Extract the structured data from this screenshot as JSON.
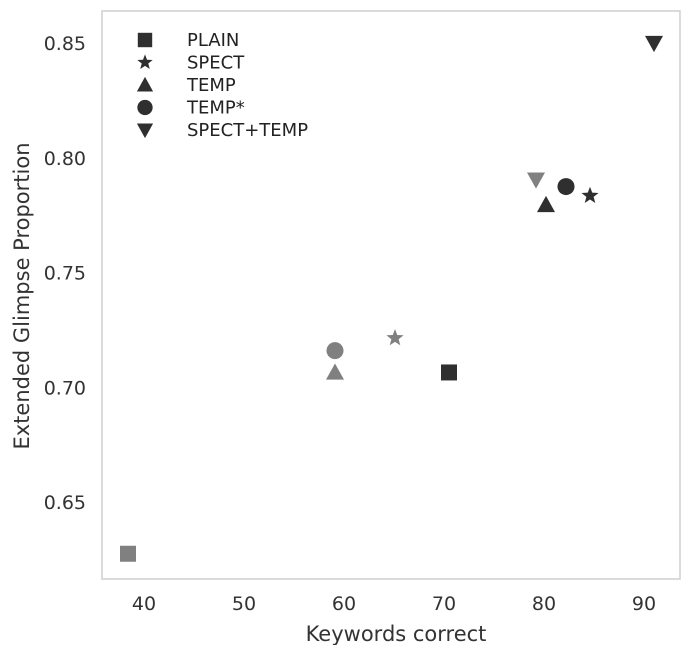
{
  "chart_data": {
    "type": "scatter",
    "title": "",
    "xlabel": "Keywords correct",
    "ylabel": "Extended Glimpse Proportion",
    "xlim": [
      35.8,
      93.6
    ],
    "ylim": [
      0.6165,
      0.864
    ],
    "xticks": [
      40,
      50,
      60,
      70,
      80,
      90
    ],
    "xtick_labels": [
      "40",
      "50",
      "60",
      "70",
      "80",
      "90"
    ],
    "yticks": [
      0.65,
      0.7,
      0.75,
      0.8,
      0.85
    ],
    "ytick_labels": [
      "0.65",
      "0.70",
      "0.75",
      "0.80",
      "0.85"
    ],
    "grid": false,
    "legend_placement": "top-left",
    "group_colors": {
      "dark": "#2f2f2f",
      "light": "#808080"
    },
    "series": [
      {
        "name": "PLAIN",
        "marker": "square",
        "points": [
          {
            "x": 70.5,
            "y": 0.7065,
            "group": "dark"
          },
          {
            "x": 38.4,
            "y": 0.6275,
            "group": "light"
          }
        ]
      },
      {
        "name": "SPECT",
        "marker": "star",
        "points": [
          {
            "x": 84.6,
            "y": 0.7835,
            "group": "dark"
          },
          {
            "x": 65.1,
            "y": 0.7215,
            "group": "light"
          }
        ]
      },
      {
        "name": "TEMP",
        "marker": "triangle-up",
        "points": [
          {
            "x": 80.2,
            "y": 0.7795,
            "group": "dark"
          },
          {
            "x": 59.1,
            "y": 0.7065,
            "group": "light"
          }
        ]
      },
      {
        "name": "TEMP*",
        "marker": "circle",
        "points": [
          {
            "x": 82.2,
            "y": 0.7875,
            "group": "dark"
          },
          {
            "x": 59.1,
            "y": 0.716,
            "group": "light"
          }
        ]
      },
      {
        "name": "SPECT+TEMP",
        "marker": "triangle-down",
        "points": [
          {
            "x": 91.0,
            "y": 0.85,
            "group": "dark"
          },
          {
            "x": 79.2,
            "y": 0.7905,
            "group": "light"
          }
        ]
      }
    ]
  }
}
